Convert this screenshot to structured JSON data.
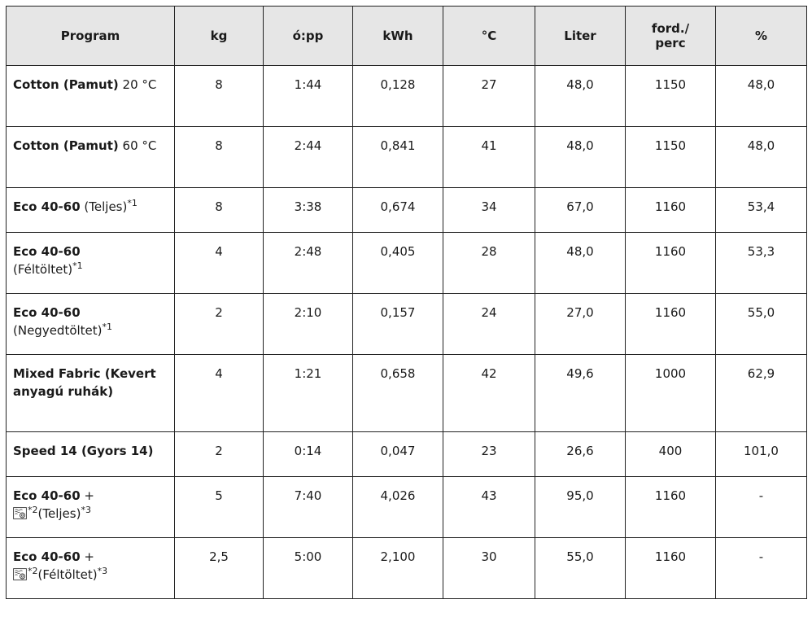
{
  "headers": [
    "Program",
    "kg",
    "ó:pp",
    "kWh",
    "°C",
    "Liter",
    "ford./\nperc",
    "%"
  ],
  "icons": {
    "dry": "washer-dryer-icon"
  },
  "rows": [
    {
      "name_bold": "Cotton (Pamut)",
      "name_rest": " 20 °C",
      "kg": "8",
      "time": "1:44",
      "kwh": "0,128",
      "temp": "27",
      "liter": "48,0",
      "rpm": "1150",
      "pct": "48,0"
    },
    {
      "name_bold": "Cotton (Pamut)",
      "name_rest": " 60 °C",
      "kg": "8",
      "time": "2:44",
      "kwh": "0,841",
      "temp": "41",
      "liter": "48,0",
      "rpm": "1150",
      "pct": "48,0"
    },
    {
      "name_bold": "Eco 40-60",
      "name_rest": " (Teljes)",
      "sup": "*1",
      "kg": "8",
      "time": "3:38",
      "kwh": "0,674",
      "temp": "34",
      "liter": "67,0",
      "rpm": "1160",
      "pct": "53,4"
    },
    {
      "name_bold": "Eco 40-60",
      "name_rest": "(Féltöltet)",
      "sup": "*1",
      "kg": "4",
      "time": "2:48",
      "kwh": "0,405",
      "temp": "28",
      "liter": "48,0",
      "rpm": "1160",
      "pct": "53,3"
    },
    {
      "name_bold": "Eco 40-60",
      "name_rest": "(Negyedtöltet)",
      "sup": "*1",
      "kg": "2",
      "time": "2:10",
      "kwh": "0,157",
      "temp": "24",
      "liter": "27,0",
      "rpm": "1160",
      "pct": "55,0"
    },
    {
      "name_bold": "Mixed Fabric (Kevert anyagú ruhák)",
      "kg": "4",
      "time": "1:21",
      "kwh": "0,658",
      "temp": "42",
      "liter": "49,6",
      "rpm": "1000",
      "pct": "62,9"
    },
    {
      "name_bold": "Speed 14 (Gyors 14)",
      "kg": "2",
      "time": "0:14",
      "kwh": "0,047",
      "temp": "23",
      "liter": "26,6",
      "rpm": "400",
      "pct": "101,0"
    },
    {
      "name_bold": "Eco 40-60",
      "name_plus": " +",
      "sup_icon": "*2",
      "name_rest": "(Teljes)",
      "sup": "*3",
      "kg": "5",
      "time": "7:40",
      "kwh": "4,026",
      "temp": "43",
      "liter": "95,0",
      "rpm": "1160",
      "pct": "-"
    },
    {
      "name_bold": "Eco 40-60",
      "name_plus": " +",
      "sup_icon": "*2",
      "name_rest": "(Féltöltet)",
      "sup": "*3",
      "kg": "2,5",
      "time": "5:00",
      "kwh": "2,100",
      "temp": "30",
      "liter": "55,0",
      "rpm": "1160",
      "pct": "-"
    }
  ]
}
